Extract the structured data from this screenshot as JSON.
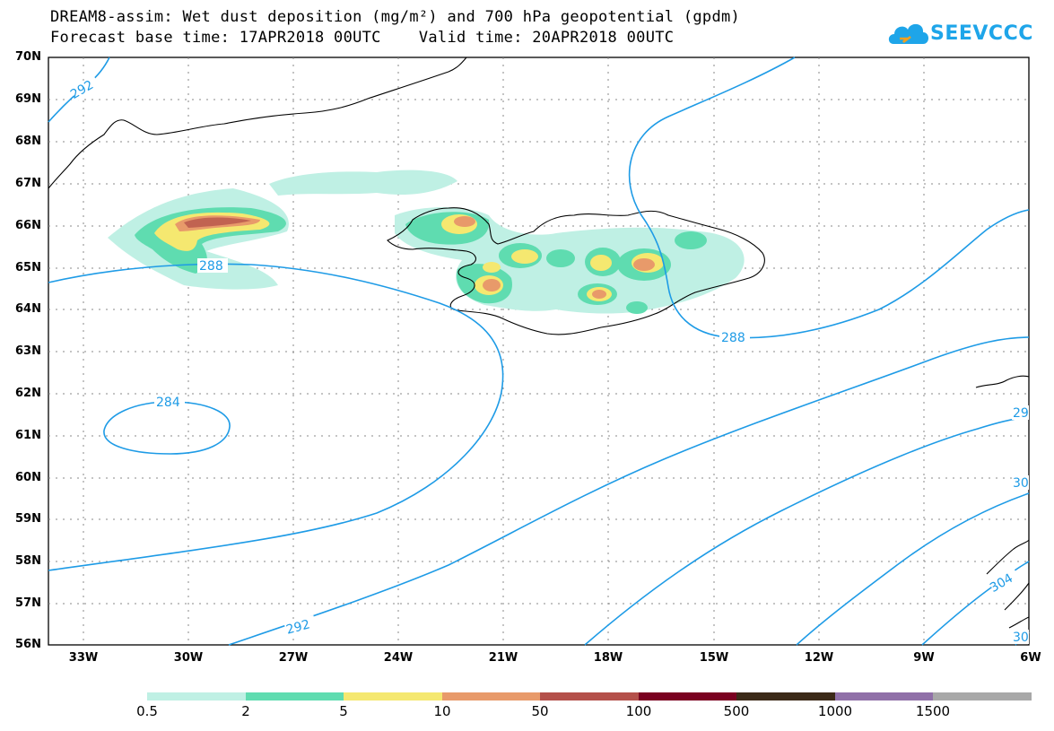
{
  "title": {
    "line1": "DREAM8-assim: Wet dust deposition (mg/m²) and 700 hPa geopotential (gpdm)",
    "line2": "Forecast base time: 17APR2018 00UTC    Valid time: 20APR2018 00UTC"
  },
  "logo": {
    "text": "SEEVCCC",
    "color": "#1ea5e9"
  },
  "axes": {
    "lat_labels": [
      "70N",
      "69N",
      "68N",
      "67N",
      "66N",
      "65N",
      "64N",
      "63N",
      "62N",
      "61N",
      "60N",
      "59N",
      "58N",
      "57N",
      "56N"
    ],
    "lon_labels": [
      "33W",
      "30W",
      "27W",
      "24W",
      "21W",
      "18W",
      "15W",
      "12W",
      "9W",
      "6W"
    ]
  },
  "contours": {
    "color": "#1e9be6",
    "labels": [
      "292",
      "288",
      "288",
      "284",
      "292",
      "29",
      "30",
      "304",
      "30"
    ]
  },
  "legend": {
    "ticks": [
      "0.5",
      "2",
      "5",
      "10",
      "50",
      "100",
      "500",
      "1000",
      "1500"
    ],
    "colors": [
      "#bff0e4",
      "#5fdcb0",
      "#f5e870",
      "#e89a6a",
      "#b4504a",
      "#7a0020",
      "#3c2a18",
      "#9070a8",
      "#a8a8a8"
    ]
  }
}
